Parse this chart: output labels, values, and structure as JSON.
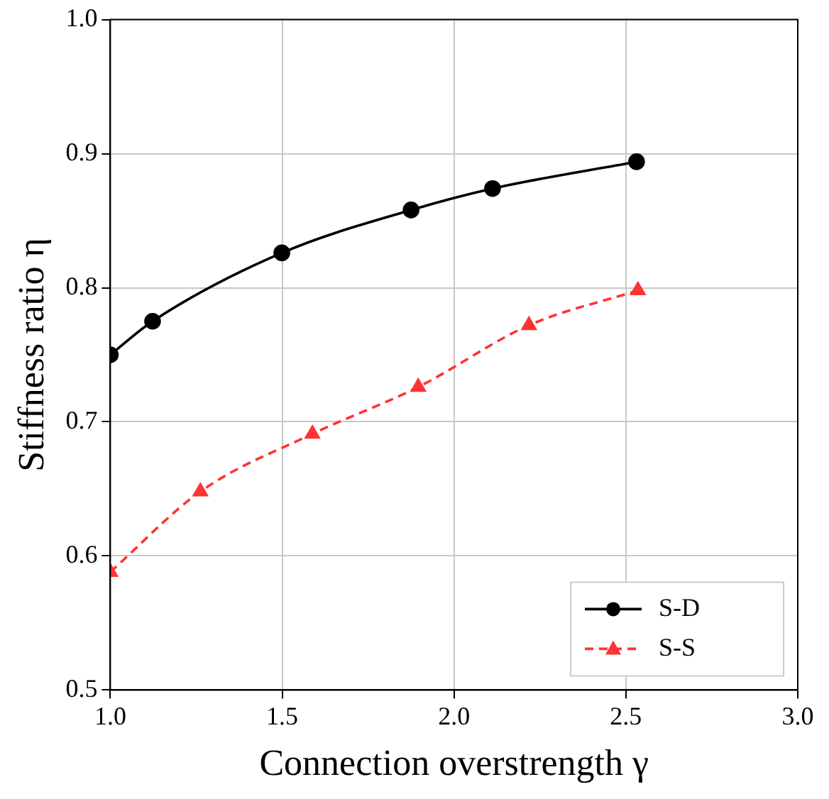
{
  "chart_data": {
    "type": "line",
    "xlabel": "Connection overstrength γ",
    "ylabel": "Stiffness ratio η",
    "xlim": [
      1.0,
      3.0
    ],
    "xticks": [
      {
        "value": 1.0,
        "label": "1.0"
      },
      {
        "value": 1.5,
        "label": "1.5"
      },
      {
        "value": 2.0,
        "label": "2.0"
      },
      {
        "value": 2.5,
        "label": "2.5"
      },
      {
        "value": 3.0,
        "label": "3.0"
      }
    ],
    "ylim": [
      0.5,
      1.0
    ],
    "yticks": [
      0.5,
      0.6,
      0.7,
      0.8,
      0.9,
      {
        "value": 1.0,
        "label": "1.0"
      }
    ],
    "grid": true,
    "legend": "bottom right",
    "series": [
      {
        "name": "S-D",
        "color": "#000000",
        "marker": "circle",
        "line_style": "solid",
        "x": [
          1.0,
          1.123,
          1.499,
          1.875,
          2.112,
          2.531
        ],
        "values": [
          0.75,
          0.775,
          0.826,
          0.858,
          0.874,
          0.894
        ]
      },
      {
        "name": "S-S",
        "color": "#ff3333",
        "marker": "triangle",
        "line_style": "dashed",
        "x": [
          1.0,
          1.262,
          1.588,
          1.896,
          2.218,
          2.535
        ],
        "values": [
          0.588,
          0.648,
          0.691,
          0.726,
          0.772,
          0.798
        ]
      }
    ]
  }
}
